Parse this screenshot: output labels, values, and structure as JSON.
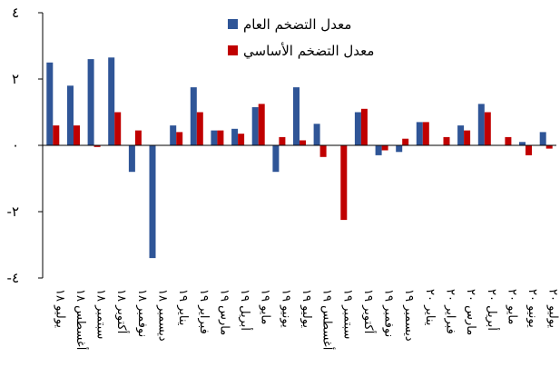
{
  "chart_data": {
    "type": "bar",
    "categories": [
      "يوليو ١٨",
      "أغسطس ١٨",
      "سبتمبر ١٨",
      "أكتوبر ١٨",
      "نوفمبر ١٨",
      "ديسمبر ١٨",
      "يناير ١٩",
      "فبراير ١٩",
      "مارس ١٩",
      "أبريل ١٩",
      "مايو ١٩",
      "يونيو ١٩",
      "يوليو ١٩",
      "أغسطس ١٩",
      "سبتمبر ١٩",
      "أكتوبر ١٩",
      "نوفمبر ١٩",
      "ديسمبر ١٩",
      "يناير ٢٠",
      "فبراير ٢٠",
      "مارس ٢٠",
      "أبريل ٢٠",
      "مايو ٢٠",
      "يونيو ٢٠",
      "يوليو ٢٠"
    ],
    "series": [
      {
        "name": "معدل التضخم العام",
        "color": "#2F5597",
        "values": [
          2.5,
          1.8,
          2.6,
          2.65,
          -0.8,
          -3.4,
          0.6,
          1.75,
          0.45,
          0.5,
          1.15,
          -0.8,
          1.75,
          0.65,
          0.0,
          1.0,
          -0.3,
          -0.2,
          0.7,
          0.0,
          0.6,
          1.25,
          0.0,
          0.1,
          0.4
        ]
      },
      {
        "name": "معدل التضخم الأساسي",
        "color": "#C00000",
        "values": [
          0.6,
          0.6,
          -0.05,
          1.0,
          0.45,
          0.0,
          0.4,
          1.0,
          0.45,
          0.35,
          1.25,
          0.25,
          0.15,
          -0.35,
          -2.25,
          1.1,
          -0.15,
          0.2,
          0.7,
          0.25,
          0.45,
          1.0,
          0.25,
          -0.3,
          -0.1
        ]
      }
    ],
    "yticks": [
      {
        "value": 4,
        "label": "٤"
      },
      {
        "value": 2,
        "label": "٢"
      },
      {
        "value": 0,
        "label": "٠"
      },
      {
        "value": -2,
        "label": "-٢"
      },
      {
        "value": -4,
        "label": "-٤"
      }
    ],
    "ylim": [
      -4,
      4
    ],
    "xlabel": "",
    "ylabel": "",
    "legend_position": "top-right",
    "grid": false,
    "title": ""
  }
}
